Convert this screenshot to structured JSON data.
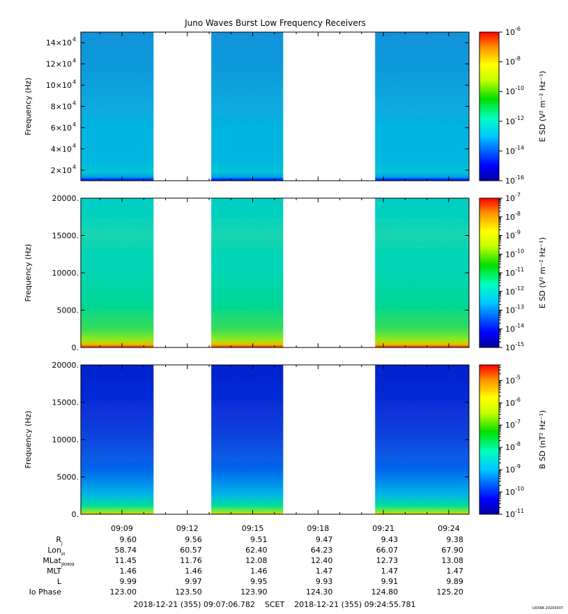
{
  "title": "Juno Waves Burst Low Frequency Receivers",
  "stamp": "UIOWA 20200307",
  "time_axis": {
    "tick_labels": [
      "09:09",
      "09:12",
      "09:15",
      "09:18",
      "09:21",
      "09:24"
    ],
    "tick_minutes": [
      9,
      12,
      15,
      18,
      21,
      24
    ],
    "start_minute": 7.113,
    "end_minute": 24.9297
  },
  "coverage": [
    {
      "start": 7.11,
      "end": 10.45
    },
    {
      "start": 13.1,
      "end": 16.4
    },
    {
      "start": 20.62,
      "end": 24.93
    }
  ],
  "ephemeris": {
    "rows": [
      {
        "label": "R",
        "sub": "J",
        "values": [
          "9.60",
          "9.56",
          "9.51",
          "9.47",
          "9.43",
          "9.38"
        ]
      },
      {
        "label": "Lon",
        "sub": "III",
        "values": [
          "58.74",
          "60.57",
          "62.40",
          "64.23",
          "66.07",
          "67.90"
        ]
      },
      {
        "label": "MLat",
        "sub": "JRM09",
        "values": [
          "11.45",
          "11.76",
          "12.08",
          "12.40",
          "12.73",
          "13.08"
        ]
      },
      {
        "label": "MLT",
        "sub": "",
        "values": [
          "1.46",
          "1.46",
          "1.46",
          "1.47",
          "1.47",
          "1.47"
        ]
      },
      {
        "label": "L",
        "sub": "",
        "values": [
          "9.99",
          "9.97",
          "9.95",
          "9.93",
          "9.91",
          "9.89"
        ]
      },
      {
        "label": "Io Phase",
        "sub": "",
        "values": [
          "123.00",
          "123.50",
          "123.90",
          "124.30",
          "124.80",
          "125.20"
        ]
      }
    ]
  },
  "scet_line": "2018-12-21 (355) 09:07:06.782    SCET    2018-12-21 (355) 09:24:55.781",
  "colors": {
    "colormap": [
      "#0000a0",
      "#0000ff",
      "#00c8ff",
      "#00ffc0",
      "#00e000",
      "#c8ff00",
      "#ffff00",
      "#ff9000",
      "#ff0000"
    ]
  },
  "chart_data": [
    {
      "type": "heatmap",
      "ylabel": "Frequency (Hz)",
      "ylim": [
        10000,
        150000
      ],
      "y_ticks": [
        {
          "v": 20000,
          "m": "2",
          "e": "4"
        },
        {
          "v": 40000,
          "m": "4",
          "e": "4"
        },
        {
          "v": 60000,
          "m": "6",
          "e": "4"
        },
        {
          "v": 80000,
          "m": "8",
          "e": "4"
        },
        {
          "v": 100000,
          "m": "10",
          "e": "4"
        },
        {
          "v": 120000,
          "m": "12",
          "e": "4"
        },
        {
          "v": 140000,
          "m": "14",
          "e": "4"
        }
      ],
      "colorbar_label": "E SD (V² m⁻² Hz⁻¹)",
      "colorbar_range_log": [
        -16,
        -6
      ],
      "colorbar_ticks": [
        -16,
        -14,
        -12,
        -10,
        -8,
        -6
      ],
      "colorbar_minor": false
    },
    {
      "type": "heatmap",
      "ylabel": "Frequency (Hz)",
      "ylim": [
        0,
        20000
      ],
      "y_ticks": [
        {
          "v": 0,
          "t": "0."
        },
        {
          "v": 5000,
          "t": "5000."
        },
        {
          "v": 10000,
          "t": "10000."
        },
        {
          "v": 15000,
          "t": "15000."
        },
        {
          "v": 20000,
          "t": "20000."
        }
      ],
      "colorbar_label": "E SD (V² m⁻² Hz⁻¹)",
      "colorbar_range_log": [
        -15,
        -7
      ],
      "colorbar_ticks": [
        -15,
        -14,
        -13,
        -12,
        -11,
        -10,
        -9,
        -8,
        -7
      ],
      "colorbar_minor": true
    },
    {
      "type": "heatmap",
      "ylabel": "Frequency (Hz)",
      "ylim": [
        0,
        20000
      ],
      "y_ticks": [
        {
          "v": 0,
          "t": "0."
        },
        {
          "v": 5000,
          "t": "5000."
        },
        {
          "v": 10000,
          "t": "10000."
        },
        {
          "v": 15000,
          "t": "15000."
        },
        {
          "v": 20000,
          "t": "20000."
        }
      ],
      "colorbar_label": "B SD (nT² Hz⁻¹)",
      "colorbar_range_log": [
        -11,
        -4.3
      ],
      "colorbar_ticks": [
        -11,
        -10,
        -9,
        -8,
        -7,
        -6,
        -5
      ],
      "colorbar_minor": true
    }
  ]
}
